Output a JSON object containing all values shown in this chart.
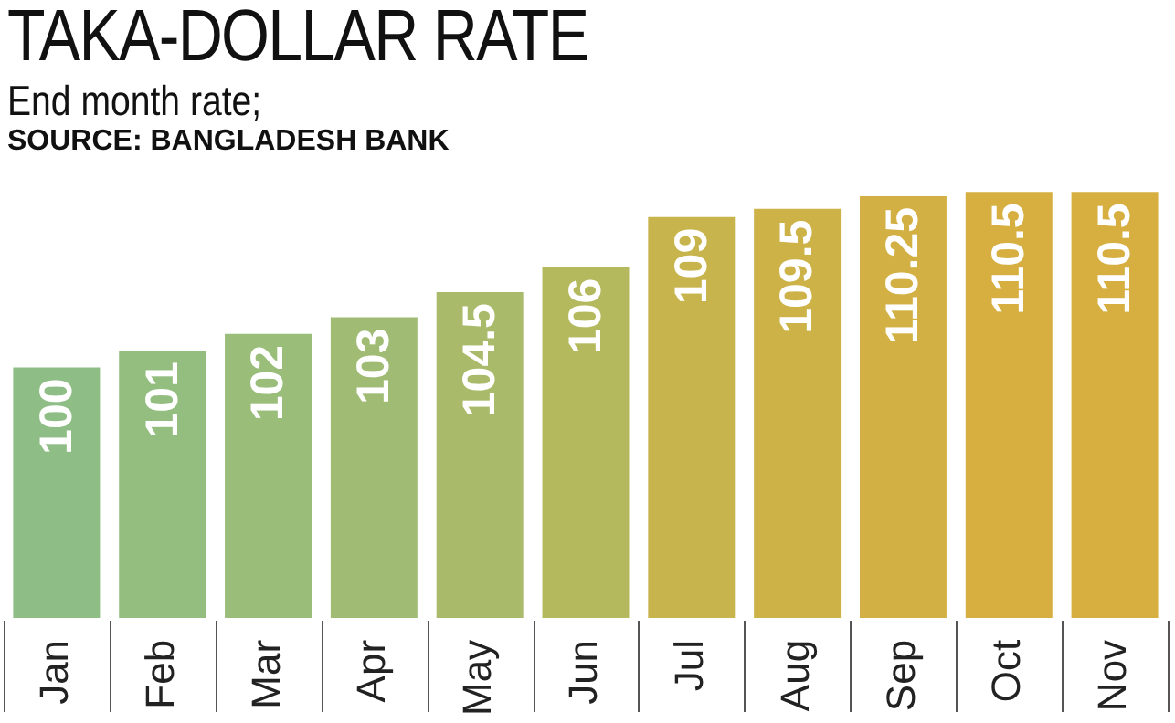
{
  "chart_data": {
    "type": "bar",
    "title": "TAKA-DOLLAR RATE",
    "subtitle": "End month rate;",
    "annotations": [
      "SOURCE: BANGLADESH BANK"
    ],
    "categories": [
      "Jan",
      "Feb",
      "Mar",
      "Apr",
      "May",
      "Jun",
      "Jul",
      "Aug",
      "Sep",
      "Oct",
      "Nov"
    ],
    "values": [
      100,
      101,
      102,
      103,
      104.5,
      106,
      109,
      109.5,
      110.25,
      110.5,
      110.5
    ],
    "colors": [
      "#8fbd86",
      "#94bd80",
      "#9abd7a",
      "#a0bc74",
      "#a9bb6a",
      "#b4b95e",
      "#c8b44c",
      "#cdb247",
      "#d3b043",
      "#d6af40",
      "#d6af40"
    ],
    "tick_labels": "x",
    "data_labels": true,
    "grid": false,
    "legend": false
  }
}
